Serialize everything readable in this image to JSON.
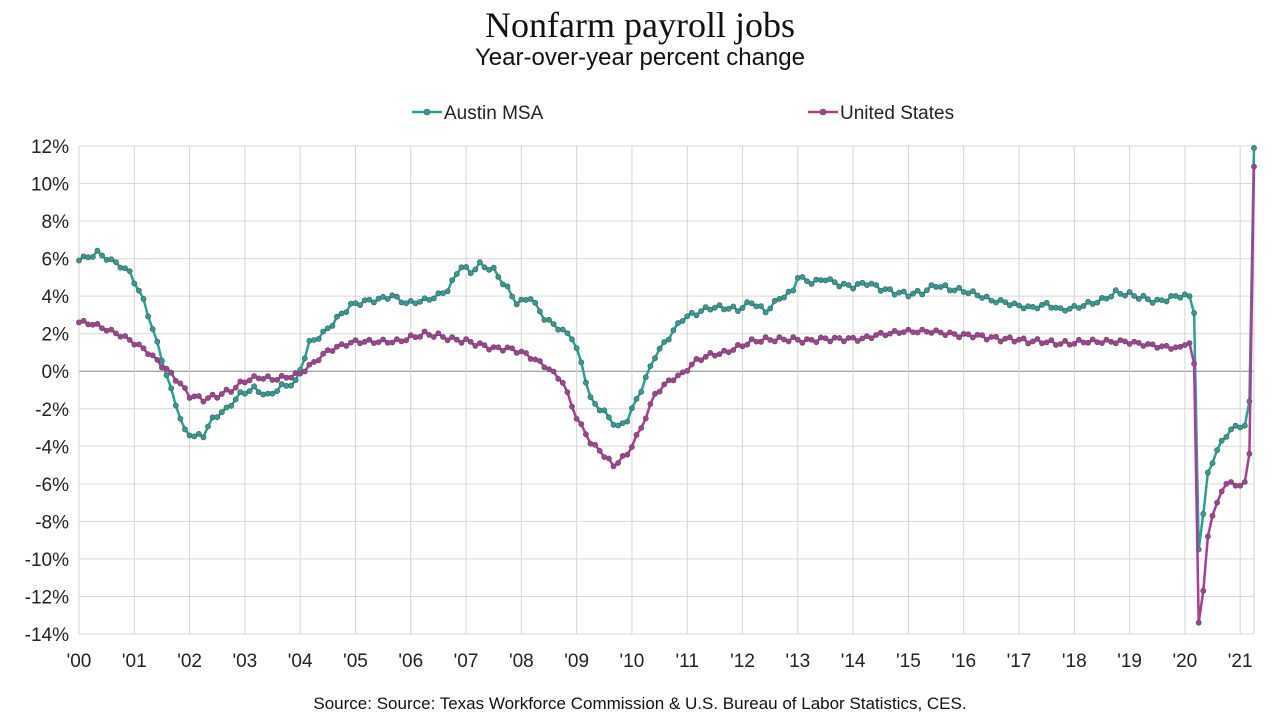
{
  "chart_data": {
    "type": "line",
    "title": "Nonfarm payroll jobs",
    "subtitle": "Year-over-year percent change",
    "source": "Source:  Source: Texas Workforce Commission & U.S. Bureau of Labor Statistics, CES.",
    "x_start": "2000-01",
    "x_end": "2021-04",
    "ylim": [
      -14,
      12
    ],
    "y_ticks": [
      "12%",
      "10%",
      "8%",
      "6%",
      "4%",
      "2%",
      "0%",
      "-2%",
      "-4%",
      "-6%",
      "-8%",
      "-10%",
      "-12%",
      "-14%"
    ],
    "x_ticks": [
      "'00",
      "'01",
      "'02",
      "'03",
      "'04",
      "'05",
      "'06",
      "'07",
      "'08",
      "'09",
      "'10",
      "'11",
      "'12",
      "'13",
      "'14",
      "'15",
      "'16",
      "'17",
      "'18",
      "'19",
      "'20",
      "'21"
    ],
    "grid": true,
    "legend_position": "top",
    "series": [
      {
        "name": "Austin MSA",
        "color": "#2aa198",
        "anchors": [
          [
            "2000-01",
            5.9
          ],
          [
            "2000-05",
            6.3
          ],
          [
            "2000-09",
            5.8
          ],
          [
            "2000-12",
            5.3
          ],
          [
            "2001-03",
            3.8
          ],
          [
            "2001-06",
            1.5
          ],
          [
            "2001-09",
            -1.0
          ],
          [
            "2001-12",
            -3.2
          ],
          [
            "2002-02",
            -3.5
          ],
          [
            "2002-04",
            -3.4
          ],
          [
            "2002-06",
            -2.5
          ],
          [
            "2002-09",
            -2.0
          ],
          [
            "2002-12",
            -1.2
          ],
          [
            "2003-03",
            -0.9
          ],
          [
            "2003-06",
            -1.3
          ],
          [
            "2003-09",
            -0.8
          ],
          [
            "2003-12",
            -0.6
          ],
          [
            "2004-03",
            1.5
          ],
          [
            "2004-06",
            2.0
          ],
          [
            "2004-09",
            2.8
          ],
          [
            "2004-12",
            3.5
          ],
          [
            "2005-03",
            3.7
          ],
          [
            "2005-06",
            3.8
          ],
          [
            "2005-09",
            4.0
          ],
          [
            "2005-12",
            3.6
          ],
          [
            "2006-03",
            3.7
          ],
          [
            "2006-06",
            3.9
          ],
          [
            "2006-09",
            4.3
          ],
          [
            "2006-12",
            5.6
          ],
          [
            "2007-02",
            5.3
          ],
          [
            "2007-04",
            5.7
          ],
          [
            "2007-07",
            5.4
          ],
          [
            "2007-10",
            4.4
          ],
          [
            "2007-12",
            3.6
          ],
          [
            "2008-03",
            3.9
          ],
          [
            "2008-06",
            2.8
          ],
          [
            "2008-09",
            2.3
          ],
          [
            "2008-12",
            1.8
          ],
          [
            "2009-02",
            0.5
          ],
          [
            "2009-04",
            -1.5
          ],
          [
            "2009-07",
            -2.2
          ],
          [
            "2009-10",
            -3.0
          ],
          [
            "2009-12",
            -2.6
          ],
          [
            "2010-03",
            -1.0
          ],
          [
            "2010-06",
            0.8
          ],
          [
            "2010-09",
            1.8
          ],
          [
            "2010-12",
            2.8
          ],
          [
            "2011-03",
            3.1
          ],
          [
            "2011-06",
            3.4
          ],
          [
            "2011-09",
            3.4
          ],
          [
            "2011-12",
            3.3
          ],
          [
            "2012-03",
            3.7
          ],
          [
            "2012-06",
            3.2
          ],
          [
            "2012-09",
            3.9
          ],
          [
            "2012-12",
            4.3
          ],
          [
            "2013-01",
            5.0
          ],
          [
            "2013-04",
            4.7
          ],
          [
            "2013-07",
            4.9
          ],
          [
            "2013-10",
            4.6
          ],
          [
            "2014-01",
            4.5
          ],
          [
            "2014-04",
            4.7
          ],
          [
            "2014-07",
            4.4
          ],
          [
            "2014-10",
            4.2
          ],
          [
            "2015-01",
            4.1
          ],
          [
            "2015-04",
            4.2
          ],
          [
            "2015-07",
            4.6
          ],
          [
            "2015-10",
            4.4
          ],
          [
            "2016-01",
            4.3
          ],
          [
            "2016-04",
            4.1
          ],
          [
            "2016-07",
            3.8
          ],
          [
            "2016-10",
            3.7
          ],
          [
            "2017-01",
            3.5
          ],
          [
            "2017-04",
            3.4
          ],
          [
            "2017-07",
            3.6
          ],
          [
            "2017-10",
            3.3
          ],
          [
            "2018-01",
            3.4
          ],
          [
            "2018-04",
            3.6
          ],
          [
            "2018-07",
            3.8
          ],
          [
            "2018-10",
            4.2
          ],
          [
            "2019-01",
            4.1
          ],
          [
            "2019-04",
            3.9
          ],
          [
            "2019-07",
            3.7
          ],
          [
            "2019-10",
            3.9
          ],
          [
            "2020-01",
            4.1
          ],
          [
            "2020-02",
            4.0
          ],
          [
            "2020-03",
            3.1
          ],
          [
            "2020-04",
            -9.5
          ],
          [
            "2020-05",
            -7.6
          ],
          [
            "2020-06",
            -5.4
          ],
          [
            "2020-07",
            -4.9
          ],
          [
            "2020-08",
            -4.2
          ],
          [
            "2020-09",
            -3.7
          ],
          [
            "2020-10",
            -3.5
          ],
          [
            "2020-11",
            -3.1
          ],
          [
            "2020-12",
            -2.9
          ],
          [
            "2021-01",
            -3.0
          ],
          [
            "2021-02",
            -2.9
          ],
          [
            "2021-03",
            -1.6
          ],
          [
            "2021-04",
            11.9
          ]
        ]
      },
      {
        "name": "United States",
        "color": "#a83d9a",
        "anchors": [
          [
            "2000-01",
            2.6
          ],
          [
            "2000-04",
            2.5
          ],
          [
            "2000-07",
            2.2
          ],
          [
            "2000-10",
            1.9
          ],
          [
            "2001-01",
            1.5
          ],
          [
            "2001-04",
            1.0
          ],
          [
            "2001-07",
            0.3
          ],
          [
            "2001-10",
            -0.4
          ],
          [
            "2002-01",
            -1.3
          ],
          [
            "2002-04",
            -1.5
          ],
          [
            "2002-07",
            -1.3
          ],
          [
            "2002-10",
            -1.0
          ],
          [
            "2003-01",
            -0.5
          ],
          [
            "2003-04",
            -0.3
          ],
          [
            "2003-07",
            -0.4
          ],
          [
            "2003-10",
            -0.3
          ],
          [
            "2004-01",
            -0.1
          ],
          [
            "2004-04",
            0.5
          ],
          [
            "2004-07",
            1.1
          ],
          [
            "2004-10",
            1.4
          ],
          [
            "2005-01",
            1.6
          ],
          [
            "2005-04",
            1.6
          ],
          [
            "2005-07",
            1.6
          ],
          [
            "2005-10",
            1.6
          ],
          [
            "2006-01",
            1.8
          ],
          [
            "2006-04",
            2.0
          ],
          [
            "2006-07",
            1.9
          ],
          [
            "2006-10",
            1.7
          ],
          [
            "2007-01",
            1.6
          ],
          [
            "2007-04",
            1.4
          ],
          [
            "2007-07",
            1.2
          ],
          [
            "2007-10",
            1.2
          ],
          [
            "2008-01",
            1.0
          ],
          [
            "2008-04",
            0.6
          ],
          [
            "2008-07",
            0.1
          ],
          [
            "2008-10",
            -0.6
          ],
          [
            "2009-01",
            -2.5
          ],
          [
            "2009-04",
            -3.8
          ],
          [
            "2009-07",
            -4.5
          ],
          [
            "2009-09",
            -5.0
          ],
          [
            "2009-12",
            -4.4
          ],
          [
            "2010-03",
            -3.0
          ],
          [
            "2010-06",
            -1.2
          ],
          [
            "2010-09",
            -0.5
          ],
          [
            "2010-12",
            -0.1
          ],
          [
            "2011-03",
            0.6
          ],
          [
            "2011-06",
            0.9
          ],
          [
            "2011-09",
            1.0
          ],
          [
            "2011-12",
            1.3
          ],
          [
            "2012-03",
            1.6
          ],
          [
            "2012-06",
            1.7
          ],
          [
            "2012-09",
            1.7
          ],
          [
            "2012-12",
            1.7
          ],
          [
            "2013-03",
            1.6
          ],
          [
            "2013-06",
            1.7
          ],
          [
            "2013-09",
            1.7
          ],
          [
            "2013-12",
            1.7
          ],
          [
            "2014-03",
            1.7
          ],
          [
            "2014-06",
            1.9
          ],
          [
            "2014-09",
            2.0
          ],
          [
            "2014-12",
            2.1
          ],
          [
            "2015-03",
            2.1
          ],
          [
            "2015-06",
            2.1
          ],
          [
            "2015-09",
            2.0
          ],
          [
            "2015-12",
            1.9
          ],
          [
            "2016-03",
            1.9
          ],
          [
            "2016-06",
            1.8
          ],
          [
            "2016-09",
            1.7
          ],
          [
            "2016-12",
            1.7
          ],
          [
            "2017-03",
            1.6
          ],
          [
            "2017-06",
            1.6
          ],
          [
            "2017-09",
            1.5
          ],
          [
            "2017-12",
            1.5
          ],
          [
            "2018-03",
            1.6
          ],
          [
            "2018-06",
            1.6
          ],
          [
            "2018-09",
            1.6
          ],
          [
            "2018-12",
            1.6
          ],
          [
            "2019-03",
            1.5
          ],
          [
            "2019-06",
            1.4
          ],
          [
            "2019-09",
            1.3
          ],
          [
            "2019-12",
            1.3
          ],
          [
            "2020-01",
            1.4
          ],
          [
            "2020-02",
            1.5
          ],
          [
            "2020-03",
            0.4
          ],
          [
            "2020-04",
            -13.4
          ],
          [
            "2020-05",
            -11.7
          ],
          [
            "2020-06",
            -8.8
          ],
          [
            "2020-07",
            -7.7
          ],
          [
            "2020-08",
            -7.0
          ],
          [
            "2020-09",
            -6.4
          ],
          [
            "2020-10",
            -6.0
          ],
          [
            "2020-11",
            -5.9
          ],
          [
            "2020-12",
            -6.1
          ],
          [
            "2021-01",
            -6.1
          ],
          [
            "2021-02",
            -5.9
          ],
          [
            "2021-03",
            -4.4
          ],
          [
            "2021-04",
            10.9
          ]
        ]
      }
    ]
  }
}
